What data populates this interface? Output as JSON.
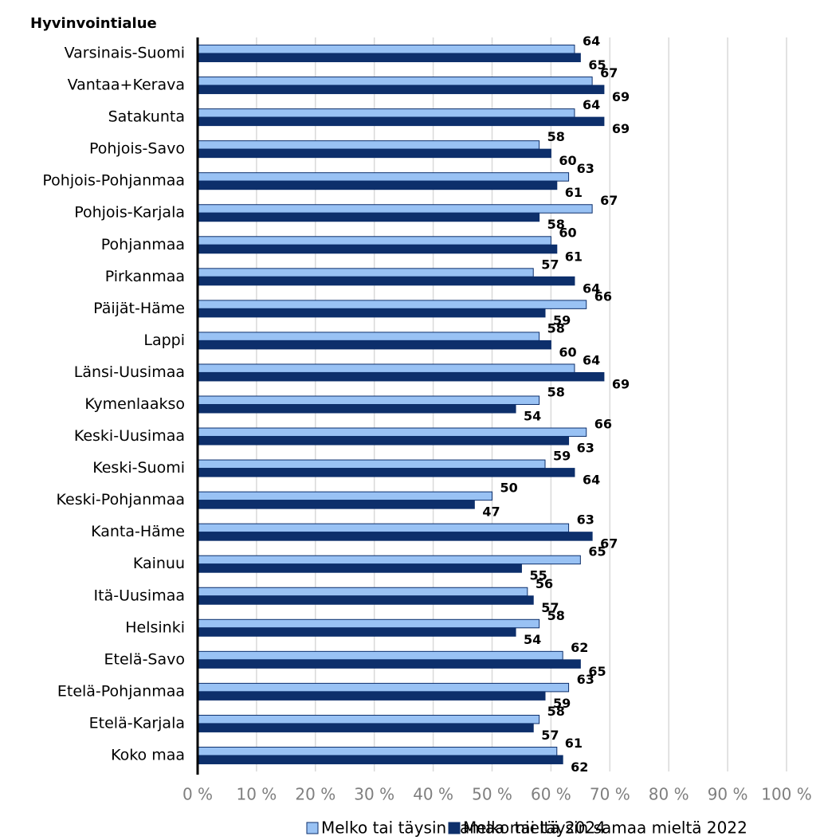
{
  "chart_data": {
    "type": "bar",
    "orientation": "horizontal",
    "y_axis_title": "Hyvinvointialue",
    "categories": [
      "Varsinais-Suomi",
      "Vantaa+Kerava",
      "Satakunta",
      "Pohjois-Savo",
      "Pohjois-Pohjanmaa",
      "Pohjois-Karjala",
      "Pohjanmaa",
      "Pirkanmaa",
      "Päijät-Häme",
      "Lappi",
      "Länsi-Uusimaa",
      "Kymenlaakso",
      "Keski-Uusimaa",
      "Keski-Suomi",
      "Keski-Pohjanmaa",
      "Kanta-Häme",
      "Kainuu",
      "Itä-Uusimaa",
      "Helsinki",
      "Etelä-Savo",
      "Etelä-Pohjanmaa",
      "Etelä-Karjala",
      "Koko maa"
    ],
    "series": [
      {
        "name": "Melko tai täysin samaa mieltä 2024",
        "color": "#99c2f4",
        "values": [
          64,
          67,
          64,
          58,
          63,
          67,
          60,
          57,
          66,
          58,
          64,
          58,
          66,
          59,
          50,
          63,
          65,
          56,
          58,
          62,
          63,
          58,
          61
        ]
      },
      {
        "name": "Melko tai täysin samaa mieltä 2022",
        "color": "#0d2f6b",
        "values": [
          65,
          69,
          69,
          60,
          61,
          58,
          61,
          64,
          59,
          60,
          69,
          54,
          63,
          64,
          47,
          67,
          55,
          57,
          54,
          65,
          59,
          57,
          62
        ]
      }
    ],
    "xlim": [
      0,
      100
    ],
    "xticks": [
      {
        "value": 0,
        "label": "0 %"
      },
      {
        "value": 10,
        "label": "10 %"
      },
      {
        "value": 20,
        "label": "20 %"
      },
      {
        "value": 30,
        "label": "30 %"
      },
      {
        "value": 40,
        "label": "40 %"
      },
      {
        "value": 50,
        "label": "50 %"
      },
      {
        "value": 60,
        "label": "60 %"
      },
      {
        "value": 70,
        "label": "70 %"
      },
      {
        "value": 80,
        "label": "80 %"
      },
      {
        "value": 90,
        "label": "90 %"
      },
      {
        "value": 100,
        "label": "100 %"
      }
    ],
    "grid": true,
    "legend": "bottom"
  }
}
